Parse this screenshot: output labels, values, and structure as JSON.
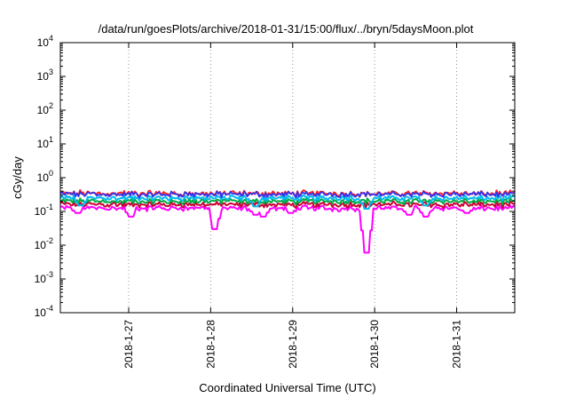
{
  "chart_data": {
    "type": "line",
    "title": "/data/run/goesPlots/archive/2018-01-31/15:00/flux/../bryn/5daysMoon.plot",
    "xlabel": "Coordinated Universal Time (UTC)",
    "ylabel": "cGy/day",
    "yscale": "log",
    "ylim": [
      0.0001,
      10000
    ],
    "y_tick_values": [
      0.0001,
      0.001,
      0.01,
      0.1,
      1,
      10,
      100,
      1000,
      10000
    ],
    "y_tick_labels": [
      {
        "base": "10",
        "exp": "-4"
      },
      {
        "base": "10",
        "exp": "-3"
      },
      {
        "base": "10",
        "exp": "-2"
      },
      {
        "base": "10",
        "exp": "-1"
      },
      {
        "base": "10",
        "exp": "0"
      },
      {
        "base": "10",
        "exp": "1"
      },
      {
        "base": "10",
        "exp": "2"
      },
      {
        "base": "10",
        "exp": "3"
      },
      {
        "base": "10",
        "exp": "4"
      }
    ],
    "xlim": [
      "2018-01-26T04:00",
      "2018-01-31T17:00"
    ],
    "x_ticks": [
      {
        "date": "2018-01-27T00:00",
        "label": "2018-1-27"
      },
      {
        "date": "2018-01-28T00:00",
        "label": "2018-1-28"
      },
      {
        "date": "2018-01-29T00:00",
        "label": "2018-1-29"
      },
      {
        "date": "2018-01-30T00:00",
        "label": "2018-1-30"
      },
      {
        "date": "2018-01-31T00:00",
        "label": "2018-1-31"
      }
    ],
    "grid": "vertical dotted at x ticks",
    "legend": "none",
    "series": [
      {
        "color": "#ff00ff",
        "base": 0.125,
        "dips": [
          {
            "date": "2018-01-26T09:00",
            "value": 0.09
          },
          {
            "date": "2018-01-27T00:30",
            "value": 0.07
          },
          {
            "date": "2018-01-28T01:20",
            "value": 0.03
          },
          {
            "date": "2018-01-28T13:00",
            "value": 0.08
          },
          {
            "date": "2018-01-28T15:30",
            "value": 0.07
          },
          {
            "date": "2018-01-28T23:30",
            "value": 0.09
          },
          {
            "date": "2018-01-29T21:40",
            "value": 0.006
          },
          {
            "date": "2018-01-30T10:00",
            "value": 0.08
          },
          {
            "date": "2018-01-30T14:50",
            "value": 0.07
          },
          {
            "date": "2018-01-31T03:00",
            "value": 0.09
          }
        ]
      },
      {
        "color": "#cc0033",
        "base": 0.16,
        "dips": []
      },
      {
        "color": "#00aa44",
        "base": 0.2,
        "dips": []
      },
      {
        "color": "#00bbee",
        "base": 0.25,
        "dips": [
          {
            "date": "2018-01-26T10:00",
            "value": 0.15
          },
          {
            "date": "2018-01-28T13:00",
            "value": 0.14
          },
          {
            "date": "2018-01-29T21:40",
            "value": 0.12
          },
          {
            "date": "2018-01-30T15:00",
            "value": 0.15
          }
        ]
      },
      {
        "color": "#ff2222",
        "base": 0.34,
        "dips": []
      },
      {
        "color": "#3333ee",
        "base": 0.32,
        "dips": []
      }
    ]
  }
}
